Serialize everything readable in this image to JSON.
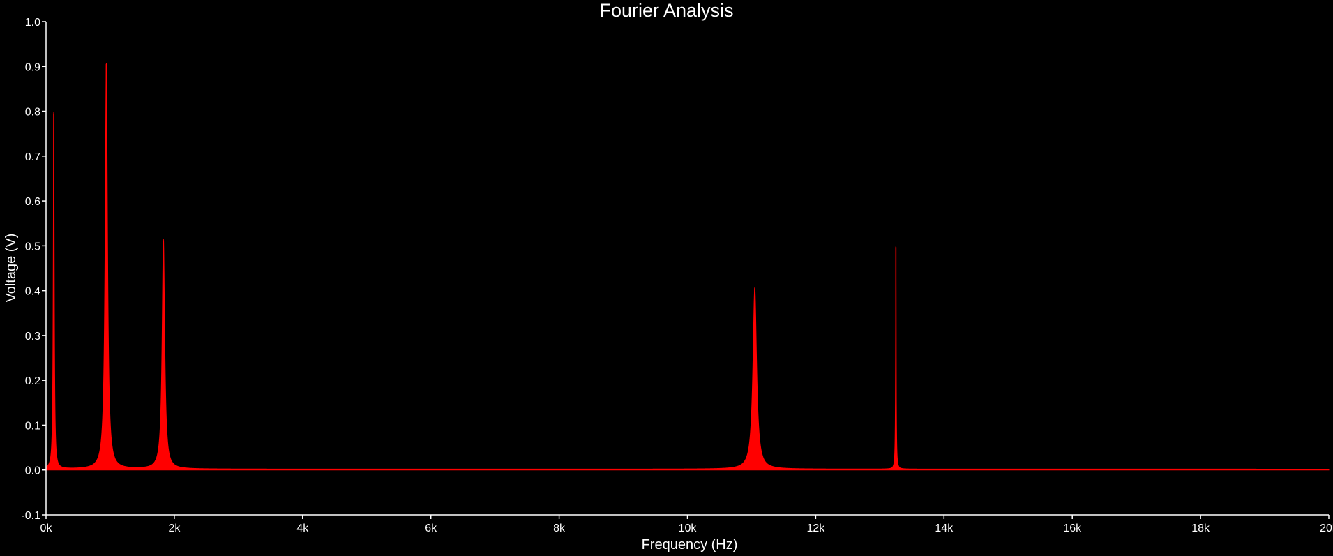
{
  "chart_data": {
    "type": "line",
    "title": "Fourier Analysis",
    "xlabel": "Frequency (Hz)",
    "ylabel": "Voltage (V)",
    "xlim": [
      0,
      20000
    ],
    "ylim": [
      -0.1,
      1.0
    ],
    "x_ticks": [
      0,
      2000,
      4000,
      6000,
      8000,
      10000,
      12000,
      14000,
      16000,
      18000,
      20000
    ],
    "x_tick_labels": [
      "0k",
      "2k",
      "4k",
      "6k",
      "8k",
      "10k",
      "12k",
      "14k",
      "16k",
      "18k",
      "20k"
    ],
    "y_ticks": [
      -0.1,
      0.0,
      0.1,
      0.2,
      0.3,
      0.4,
      0.5,
      0.6,
      0.7,
      0.8,
      0.9,
      1.0
    ],
    "y_tick_labels": [
      "-0.1",
      "0.0",
      "0.1",
      "0.2",
      "0.3",
      "0.4",
      "0.5",
      "0.6",
      "0.7",
      "0.8",
      "0.9",
      "1.0"
    ],
    "grid": false,
    "legend": "none",
    "series_color": "#ff0000",
    "axis_color": "#ffffff",
    "background_color": "#000000",
    "peaks": [
      {
        "x": 120,
        "y": 0.795
      },
      {
        "x": 940,
        "y": 0.905
      },
      {
        "x": 1830,
        "y": 0.512
      },
      {
        "x": 11050,
        "y": 0.405
      },
      {
        "x": 13250,
        "y": 0.497
      }
    ]
  }
}
